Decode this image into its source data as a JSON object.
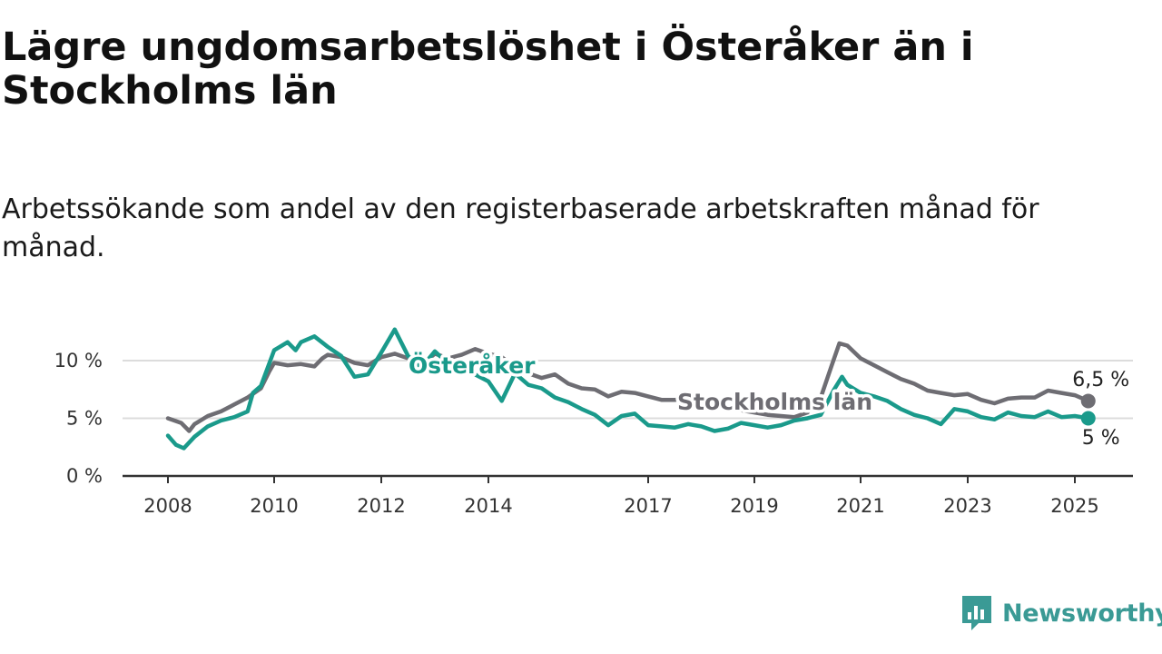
{
  "title": "Lägre ungdomsarbetslöshet i Österåker än i Stockholms län",
  "subtitle": "Arbetssökande som andel av den registerbaserade arbetskraften månad för månad.",
  "brand": {
    "name": "Newsworthy",
    "color": "#3a9a95"
  },
  "chart_data": {
    "type": "line",
    "ylim": [
      0,
      12.5
    ],
    "y_ticks": [
      {
        "value": 0,
        "label": "0 %"
      },
      {
        "value": 5,
        "label": "5 %"
      },
      {
        "value": 10,
        "label": "10 %"
      }
    ],
    "x_ticks": [
      "2008",
      "2010",
      "2012",
      "2014",
      "2017",
      "2019",
      "2021",
      "2023",
      "2025"
    ],
    "grid": true,
    "series": [
      {
        "name": "Stockholms län",
        "color": "#6e6d73",
        "end_label": "6,5 %",
        "points": [
          [
            2008.0,
            5.0
          ],
          [
            2008.25,
            4.6
          ],
          [
            2008.4,
            3.9
          ],
          [
            2008.5,
            4.5
          ],
          [
            2008.75,
            5.2
          ],
          [
            2009.0,
            5.6
          ],
          [
            2009.25,
            6.2
          ],
          [
            2009.5,
            6.8
          ],
          [
            2009.75,
            7.6
          ],
          [
            2009.9,
            9.0
          ],
          [
            2010.0,
            9.8
          ],
          [
            2010.25,
            9.6
          ],
          [
            2010.5,
            9.7
          ],
          [
            2010.75,
            9.5
          ],
          [
            2010.9,
            10.2
          ],
          [
            2011.0,
            10.5
          ],
          [
            2011.25,
            10.3
          ],
          [
            2011.5,
            9.8
          ],
          [
            2011.75,
            9.6
          ],
          [
            2012.0,
            10.3
          ],
          [
            2012.25,
            10.6
          ],
          [
            2012.5,
            10.2
          ],
          [
            2012.75,
            9.6
          ],
          [
            2013.0,
            10.6
          ],
          [
            2013.25,
            10.2
          ],
          [
            2013.5,
            10.5
          ],
          [
            2013.75,
            11.0
          ],
          [
            2014.0,
            10.6
          ],
          [
            2014.25,
            10.3
          ],
          [
            2014.5,
            9.4
          ],
          [
            2014.75,
            8.9
          ],
          [
            2015.0,
            8.5
          ],
          [
            2015.25,
            8.8
          ],
          [
            2015.5,
            8.0
          ],
          [
            2015.75,
            7.6
          ],
          [
            2016.0,
            7.5
          ],
          [
            2016.25,
            6.9
          ],
          [
            2016.5,
            7.3
          ],
          [
            2016.75,
            7.2
          ],
          [
            2017.0,
            6.9
          ],
          [
            2017.25,
            6.6
          ],
          [
            2017.5,
            6.6
          ],
          [
            2017.75,
            6.7
          ],
          [
            2018.0,
            6.3
          ],
          [
            2018.25,
            6.0
          ],
          [
            2018.5,
            5.9
          ],
          [
            2018.75,
            5.7
          ],
          [
            2019.0,
            5.5
          ],
          [
            2019.25,
            5.3
          ],
          [
            2019.5,
            5.2
          ],
          [
            2019.75,
            5.1
          ],
          [
            2020.0,
            5.5
          ],
          [
            2020.25,
            6.8
          ],
          [
            2020.45,
            9.5
          ],
          [
            2020.6,
            11.5
          ],
          [
            2020.75,
            11.3
          ],
          [
            2021.0,
            10.2
          ],
          [
            2021.25,
            9.6
          ],
          [
            2021.5,
            9.0
          ],
          [
            2021.75,
            8.4
          ],
          [
            2022.0,
            8.0
          ],
          [
            2022.25,
            7.4
          ],
          [
            2022.5,
            7.2
          ],
          [
            2022.75,
            7.0
          ],
          [
            2023.0,
            7.1
          ],
          [
            2023.25,
            6.6
          ],
          [
            2023.5,
            6.3
          ],
          [
            2023.75,
            6.7
          ],
          [
            2024.0,
            6.8
          ],
          [
            2024.25,
            6.8
          ],
          [
            2024.5,
            7.4
          ],
          [
            2024.75,
            7.2
          ],
          [
            2025.0,
            7.0
          ],
          [
            2025.25,
            6.5
          ]
        ]
      },
      {
        "name": "Österåker",
        "color": "#1a9a8b",
        "end_label": "5 %",
        "points": [
          [
            2008.0,
            3.5
          ],
          [
            2008.15,
            2.7
          ],
          [
            2008.3,
            2.4
          ],
          [
            2008.5,
            3.4
          ],
          [
            2008.75,
            4.3
          ],
          [
            2009.0,
            4.8
          ],
          [
            2009.25,
            5.1
          ],
          [
            2009.5,
            5.6
          ],
          [
            2009.6,
            7.2
          ],
          [
            2009.75,
            7.8
          ],
          [
            2010.0,
            10.9
          ],
          [
            2010.25,
            11.6
          ],
          [
            2010.4,
            10.9
          ],
          [
            2010.5,
            11.6
          ],
          [
            2010.75,
            12.1
          ],
          [
            2011.0,
            11.2
          ],
          [
            2011.25,
            10.4
          ],
          [
            2011.5,
            8.6
          ],
          [
            2011.75,
            8.8
          ],
          [
            2012.0,
            10.7
          ],
          [
            2012.25,
            12.7
          ],
          [
            2012.5,
            10.4
          ],
          [
            2012.75,
            9.4
          ],
          [
            2013.0,
            10.8
          ],
          [
            2013.25,
            9.7
          ],
          [
            2013.5,
            9.4
          ],
          [
            2013.75,
            8.8
          ],
          [
            2014.0,
            8.2
          ],
          [
            2014.25,
            6.5
          ],
          [
            2014.5,
            8.9
          ],
          [
            2014.75,
            7.9
          ],
          [
            2015.0,
            7.6
          ],
          [
            2015.25,
            6.8
          ],
          [
            2015.5,
            6.4
          ],
          [
            2015.75,
            5.8
          ],
          [
            2016.0,
            5.3
          ],
          [
            2016.25,
            4.4
          ],
          [
            2016.5,
            5.2
          ],
          [
            2016.75,
            5.4
          ],
          [
            2017.0,
            4.4
          ],
          [
            2017.25,
            4.3
          ],
          [
            2017.5,
            4.2
          ],
          [
            2017.75,
            4.5
          ],
          [
            2018.0,
            4.3
          ],
          [
            2018.25,
            3.9
          ],
          [
            2018.5,
            4.1
          ],
          [
            2018.75,
            4.6
          ],
          [
            2019.0,
            4.4
          ],
          [
            2019.25,
            4.2
          ],
          [
            2019.5,
            4.4
          ],
          [
            2019.75,
            4.8
          ],
          [
            2020.0,
            5.0
          ],
          [
            2020.25,
            5.3
          ],
          [
            2020.5,
            7.5
          ],
          [
            2020.65,
            8.6
          ],
          [
            2020.75,
            7.9
          ],
          [
            2021.0,
            7.2
          ],
          [
            2021.25,
            6.9
          ],
          [
            2021.5,
            6.5
          ],
          [
            2021.75,
            5.8
          ],
          [
            2022.0,
            5.3
          ],
          [
            2022.25,
            5.0
          ],
          [
            2022.5,
            4.5
          ],
          [
            2022.75,
            5.8
          ],
          [
            2023.0,
            5.6
          ],
          [
            2023.25,
            5.1
          ],
          [
            2023.5,
            4.9
          ],
          [
            2023.75,
            5.5
          ],
          [
            2024.0,
            5.2
          ],
          [
            2024.25,
            5.1
          ],
          [
            2024.5,
            5.6
          ],
          [
            2024.75,
            5.1
          ],
          [
            2025.0,
            5.2
          ],
          [
            2025.25,
            5.0
          ]
        ]
      }
    ]
  }
}
